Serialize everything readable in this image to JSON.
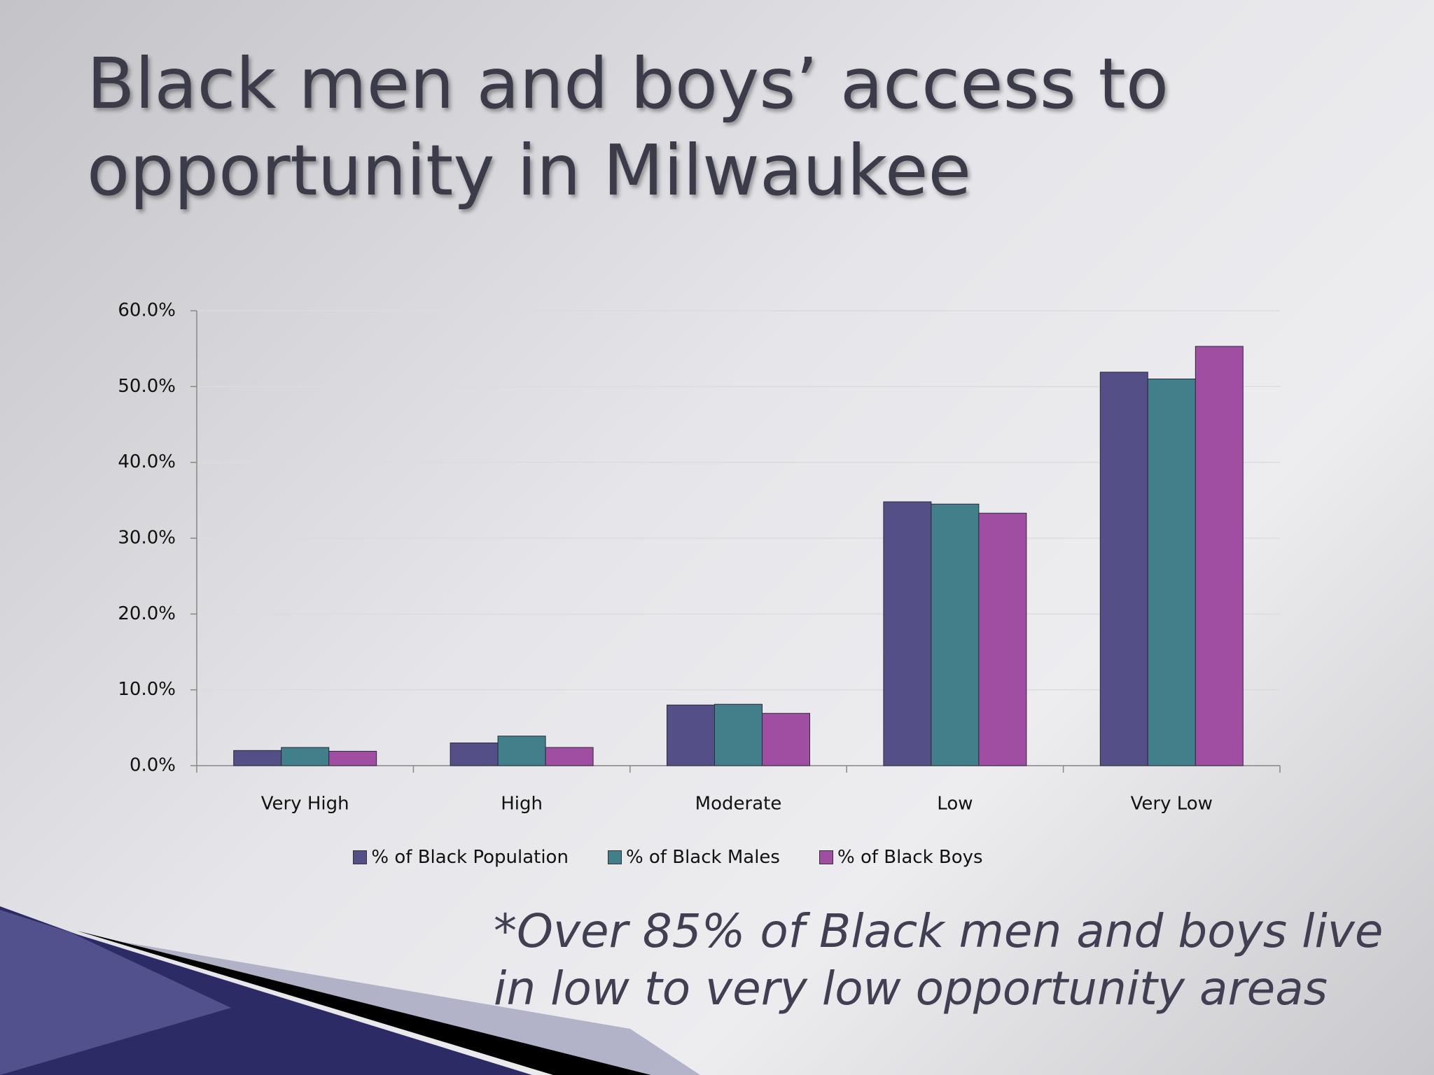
{
  "chart_data": {
    "type": "bar",
    "title": "Black men and boys’ access to opportunity in Milwaukee",
    "annotation": "*Over 85% of Black men and boys live in low to very low opportunity areas",
    "categories": [
      "Very High",
      "High",
      "Moderate",
      "Low",
      "Very Low"
    ],
    "series": [
      {
        "name": "% of Black Population",
        "color": "#545087",
        "values": [
          2.0,
          3.0,
          8.0,
          34.8,
          51.9
        ]
      },
      {
        "name": "% of Black Males",
        "color": "#41808a",
        "values": [
          2.4,
          3.9,
          8.1,
          34.5,
          51.0
        ]
      },
      {
        "name": "% of Black Boys",
        "color": "#a04ea2",
        "values": [
          1.9,
          2.4,
          6.9,
          33.3,
          55.3
        ]
      }
    ],
    "ylim": [
      0,
      60
    ],
    "yticks": [
      {
        "value": 0,
        "label": "0.0%"
      },
      {
        "value": 10,
        "label": "10.0%"
      },
      {
        "value": 20,
        "label": "20.0%"
      },
      {
        "value": 30,
        "label": "30.0%"
      },
      {
        "value": 40,
        "label": "40.0%"
      },
      {
        "value": 50,
        "label": "50.0%"
      },
      {
        "value": 60,
        "label": "60.0%"
      }
    ],
    "grid": true,
    "legend": "bottom"
  }
}
